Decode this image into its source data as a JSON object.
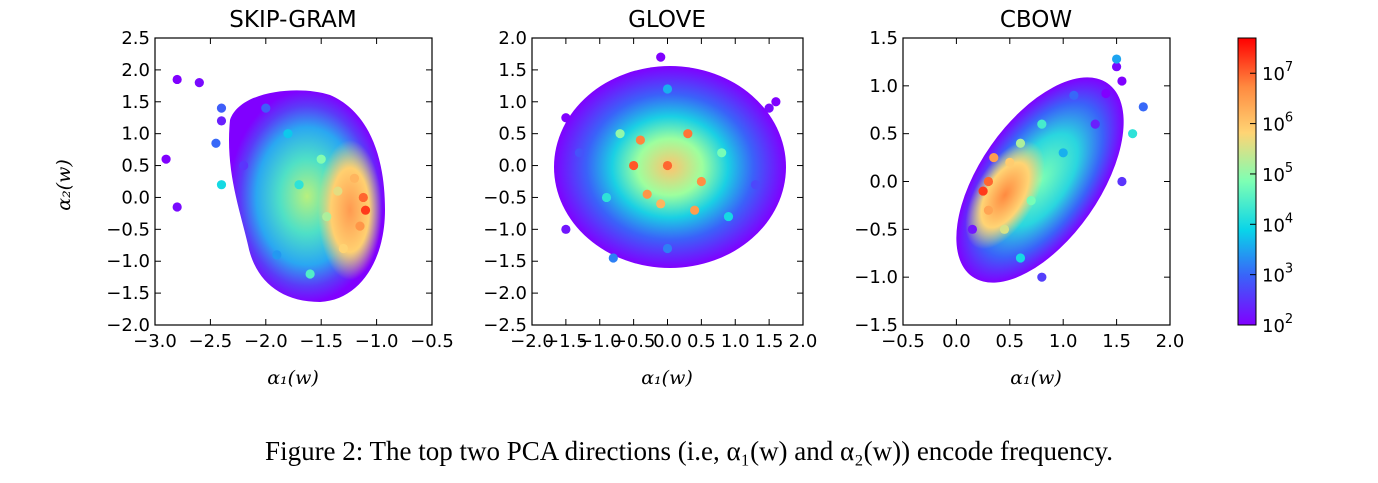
{
  "figure": {
    "caption": "Figure 2: The top two PCA directions (i.e, α₁(w) and α₂(w)) encode frequency.",
    "colormap": "rainbow",
    "colormap_stops": [
      "#8000ff",
      "#3a62f9",
      "#09d4e9",
      "#7dffb4",
      "#ffd474",
      "#ff8a40",
      "#ff0000"
    ]
  },
  "chart_data": [
    {
      "type": "scatter",
      "title": "SKIP-GRAM",
      "xlabel": "α₁(w)",
      "ylabel": "α₂(w)",
      "xlim": [
        -3.0,
        -0.5
      ],
      "ylim": [
        -2.0,
        2.5
      ],
      "xticks": [
        "−3.0",
        "−2.5",
        "−2.0",
        "−1.5",
        "−1.0",
        "−0.5"
      ],
      "yticks": [
        "−2.0",
        "−1.5",
        "−1.0",
        "−0.5",
        "0.0",
        "0.5",
        "1.0",
        "1.5",
        "2.0",
        "2.5"
      ],
      "color_by": "log10 word frequency",
      "points": [
        {
          "x": -1.1,
          "y": -0.2,
          "log_freq": 7.3
        },
        {
          "x": -1.12,
          "y": 0.0,
          "log_freq": 7.0
        },
        {
          "x": -1.15,
          "y": -0.45,
          "log_freq": 6.6
        },
        {
          "x": -1.2,
          "y": 0.3,
          "log_freq": 6.2
        },
        {
          "x": -1.3,
          "y": -0.8,
          "log_freq": 5.8
        },
        {
          "x": -1.35,
          "y": 0.1,
          "log_freq": 5.6
        },
        {
          "x": -1.45,
          "y": -0.3,
          "log_freq": 5.2
        },
        {
          "x": -1.5,
          "y": 0.6,
          "log_freq": 4.9
        },
        {
          "x": -1.6,
          "y": -1.2,
          "log_freq": 4.5
        },
        {
          "x": -1.7,
          "y": 0.2,
          "log_freq": 4.2
        },
        {
          "x": -1.8,
          "y": 1.0,
          "log_freq": 3.8
        },
        {
          "x": -1.9,
          "y": -0.9,
          "log_freq": 3.4
        },
        {
          "x": -2.0,
          "y": 1.4,
          "log_freq": 2.9
        },
        {
          "x": -2.2,
          "y": 0.5,
          "log_freq": 2.5
        },
        {
          "x": -2.4,
          "y": 1.2,
          "log_freq": 2.3
        },
        {
          "x": -2.6,
          "y": 1.8,
          "log_freq": 2.1
        },
        {
          "x": -2.8,
          "y": 1.85,
          "log_freq": 2.0
        },
        {
          "x": -2.9,
          "y": 0.6,
          "log_freq": 2.0
        },
        {
          "x": -2.8,
          "y": -0.15,
          "log_freq": 2.1
        },
        {
          "x": -2.45,
          "y": 0.85,
          "log_freq": 3.0
        },
        {
          "x": -2.4,
          "y": 1.4,
          "log_freq": 2.9
        },
        {
          "x": -2.4,
          "y": 0.2,
          "log_freq": 4.0
        }
      ]
    },
    {
      "type": "scatter",
      "title": "GLOVE",
      "xlabel": "α₁(w)",
      "ylabel": "",
      "xlim": [
        -2.0,
        2.0
      ],
      "ylim": [
        -2.5,
        2.0
      ],
      "xticks": [
        "−2.0",
        "−1.5",
        "−1.0",
        "−0.5",
        "0.0",
        "0.5",
        "1.0",
        "1.5",
        "2.0"
      ],
      "yticks": [
        "−2.5",
        "−2.0",
        "−1.5",
        "−1.0",
        "−0.5",
        "0.0",
        "0.5",
        "1.0",
        "1.5",
        "2.0"
      ],
      "color_by": "log10 word frequency",
      "points": [
        {
          "x": 0.0,
          "y": 0.0,
          "log_freq": 7.0
        },
        {
          "x": -0.5,
          "y": 0.0,
          "log_freq": 7.1
        },
        {
          "x": -0.4,
          "y": 0.4,
          "log_freq": 6.8
        },
        {
          "x": 0.3,
          "y": 0.5,
          "log_freq": 6.9
        },
        {
          "x": -0.3,
          "y": -0.45,
          "log_freq": 6.6
        },
        {
          "x": 0.5,
          "y": -0.25,
          "log_freq": 6.7
        },
        {
          "x": -0.1,
          "y": -0.6,
          "log_freq": 6.2
        },
        {
          "x": 0.4,
          "y": -0.7,
          "log_freq": 6.5
        },
        {
          "x": -0.7,
          "y": 0.5,
          "log_freq": 5.0
        },
        {
          "x": 0.8,
          "y": 0.2,
          "log_freq": 4.8
        },
        {
          "x": -0.9,
          "y": -0.5,
          "log_freq": 4.2
        },
        {
          "x": 0.9,
          "y": -0.8,
          "log_freq": 4.0
        },
        {
          "x": 0.0,
          "y": 1.2,
          "log_freq": 3.6
        },
        {
          "x": 0.0,
          "y": -1.3,
          "log_freq": 3.2
        },
        {
          "x": -1.3,
          "y": 0.2,
          "log_freq": 2.8
        },
        {
          "x": 1.3,
          "y": -0.3,
          "log_freq": 2.7
        },
        {
          "x": -1.5,
          "y": -1.0,
          "log_freq": 2.2
        },
        {
          "x": 1.5,
          "y": 0.9,
          "log_freq": 2.1
        },
        {
          "x": -0.1,
          "y": 1.7,
          "log_freq": 2.0
        },
        {
          "x": -0.8,
          "y": -1.45,
          "log_freq": 3.2
        },
        {
          "x": -1.5,
          "y": 0.75,
          "log_freq": 2.0
        },
        {
          "x": 1.6,
          "y": 1.0,
          "log_freq": 2.0
        }
      ]
    },
    {
      "type": "scatter",
      "title": "CBOW",
      "xlabel": "α₁(w)",
      "ylabel": "",
      "xlim": [
        -0.5,
        2.0
      ],
      "ylim": [
        -1.5,
        1.5
      ],
      "xticks": [
        "−0.5",
        "0.0",
        "0.5",
        "1.0",
        "1.5",
        "2.0"
      ],
      "yticks": [
        "−1.5",
        "−1.0",
        "−0.5",
        "0.0",
        "0.5",
        "1.0",
        "1.5"
      ],
      "color_by": "log10 word frequency",
      "points": [
        {
          "x": 0.25,
          "y": -0.1,
          "log_freq": 7.3
        },
        {
          "x": 0.3,
          "y": 0.0,
          "log_freq": 7.0
        },
        {
          "x": 0.35,
          "y": 0.25,
          "log_freq": 6.5
        },
        {
          "x": 0.3,
          "y": -0.3,
          "log_freq": 6.4
        },
        {
          "x": 0.5,
          "y": 0.2,
          "log_freq": 5.9
        },
        {
          "x": 0.45,
          "y": -0.5,
          "log_freq": 5.5
        },
        {
          "x": 0.6,
          "y": 0.4,
          "log_freq": 5.2
        },
        {
          "x": 0.7,
          "y": -0.2,
          "log_freq": 4.8
        },
        {
          "x": 0.8,
          "y": 0.6,
          "log_freq": 4.4
        },
        {
          "x": 0.6,
          "y": -0.8,
          "log_freq": 4.0
        },
        {
          "x": 1.0,
          "y": 0.3,
          "log_freq": 3.6
        },
        {
          "x": 1.1,
          "y": 0.9,
          "log_freq": 3.0
        },
        {
          "x": 0.8,
          "y": -1.0,
          "log_freq": 2.6
        },
        {
          "x": 1.3,
          "y": 0.6,
          "log_freq": 2.3
        },
        {
          "x": 0.15,
          "y": -0.5,
          "log_freq": 2.2
        },
        {
          "x": 1.5,
          "y": 1.2,
          "log_freq": 2.1
        },
        {
          "x": 1.55,
          "y": 1.05,
          "log_freq": 2.0
        },
        {
          "x": 1.75,
          "y": 0.78,
          "log_freq": 3.0
        },
        {
          "x": 1.65,
          "y": 0.5,
          "log_freq": 4.2
        },
        {
          "x": 1.5,
          "y": 1.28,
          "log_freq": 3.5
        },
        {
          "x": 1.55,
          "y": 0.0,
          "log_freq": 2.5
        },
        {
          "x": 1.4,
          "y": 0.92,
          "log_freq": 2.0
        }
      ]
    }
  ],
  "colorbar": {
    "range": [
      2,
      7.7
    ],
    "ticks": [
      {
        "base": "10",
        "exp": "2",
        "value": 2
      },
      {
        "base": "10",
        "exp": "3",
        "value": 3
      },
      {
        "base": "10",
        "exp": "4",
        "value": 4
      },
      {
        "base": "10",
        "exp": "5",
        "value": 5
      },
      {
        "base": "10",
        "exp": "6",
        "value": 6
      },
      {
        "base": "10",
        "exp": "7",
        "value": 7
      }
    ]
  }
}
